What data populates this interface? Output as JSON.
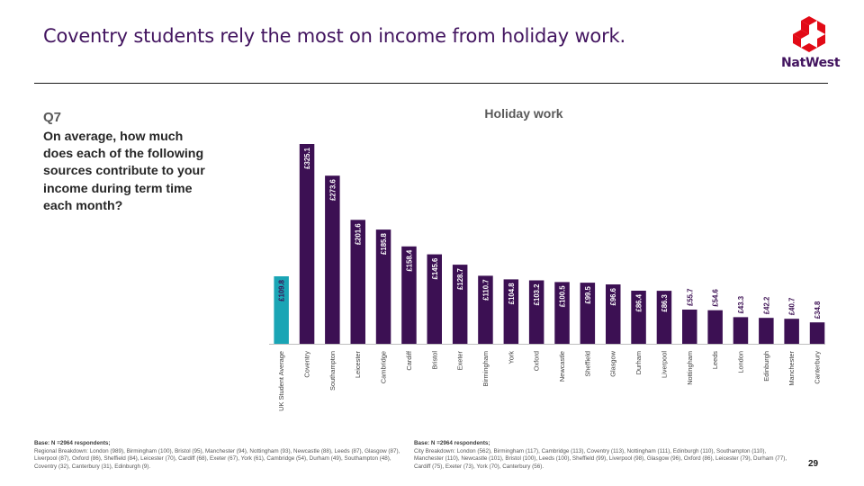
{
  "header": {
    "title": "Coventry students rely the most on income from holiday work.",
    "brand": "NatWest"
  },
  "colors": {
    "brand_purple": "#42145f",
    "bar": "#3c1053",
    "highlight_bar": "#1aa5b5",
    "logo_red": "#e20a16"
  },
  "question": {
    "number": "Q7",
    "text": "On average, how much does each of the following sources contribute to your income during term time each month?"
  },
  "chart_data": {
    "type": "bar",
    "title": "Holiday work",
    "categories": [
      "UK Student Average",
      "Coventry",
      "Southampton",
      "Leicester",
      "Cambridge",
      "Cardiff",
      "Bristol",
      "Exeter",
      "Birmingham",
      "York",
      "Oxford",
      "Newcastle",
      "Sheffield",
      "Glasgow",
      "Durham",
      "Liverpool",
      "Nottingham",
      "Leeds",
      "London",
      "Edinburgh",
      "Manchester",
      "Canterbury"
    ],
    "values": [
      109.8,
      325.1,
      273.6,
      201.6,
      185.8,
      158.4,
      145.6,
      128.7,
      110.7,
      104.8,
      103.2,
      100.5,
      99.5,
      96.6,
      86.4,
      86.3,
      55.7,
      54.6,
      43.3,
      42.2,
      40.7,
      34.8
    ],
    "labels": [
      "£109.8",
      "£325.1",
      "£273.6",
      "£201.6",
      "£185.8",
      "£158.4",
      "£145.6",
      "£128.7",
      "£110.7",
      "£104.8",
      "£103.2",
      "£100.5",
      "£99.5",
      "£96.6",
      "£86.4",
      "£86.3",
      "£55.7",
      "£54.6",
      "£43.3",
      "£42.2",
      "£40.7",
      "£34.8"
    ],
    "highlight_index": 0,
    "xlabel": "",
    "ylabel": "",
    "ylim": [
      0,
      325.1
    ],
    "grid": false,
    "legend": "none"
  },
  "footnotes": {
    "left_title": "Base: N =2964 respondents;",
    "left_text": "Regional Breakdown: London (989), Birmingham (100), Bristol (95), Manchester (94), Nottingham (93), Newcastle (88), Leeds (87), Glasgow (87), Liverpool (87), Oxford (86), Sheffield (84), Leicester (70), Cardiff (68), Exeter (67), York (61), Cambridge (54), Durham (49), Southampton (48), Coventry (32), Canterbury (31), Edinburgh (9).",
    "right_title": "Base: N =2964 respondents;",
    "right_text": "City Breakdown: London (562), Birmingham (117), Cambridge (113), Coventry (113), Nottingham (111), Edinburgh (110), Southampton (110), Manchester (110), Newcastle (101), Bristol (100), Leeds (100), Sheffield (99), Liverpool (98), Glasgow (96), Oxford (86), Leicester (79), Durham (77), Cardiff (75), Exeter (73), York (70), Canterbury (56)."
  },
  "page_number": "29"
}
